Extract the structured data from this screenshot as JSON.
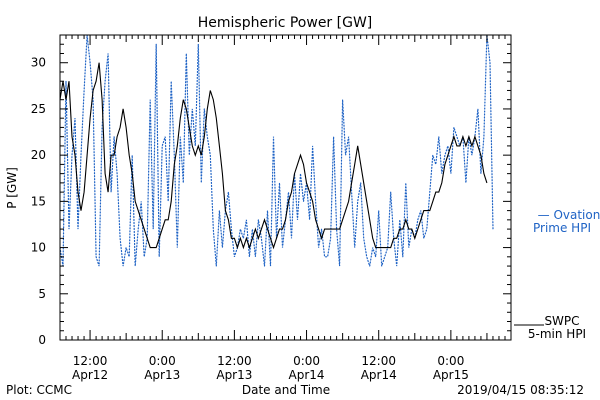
{
  "chart_data": {
    "type": "line",
    "title": "Hemispheric Power [GW]",
    "ylabel": "P [GW]",
    "xlabel": "Date and Time",
    "ylim": [
      0,
      33
    ],
    "yticks": [
      0,
      5,
      10,
      15,
      20,
      25,
      30
    ],
    "x_units": "hours since 2019/04/12 00:00",
    "xlim": [
      7,
      82
    ],
    "xticks": [
      {
        "x": 12,
        "line1": "12:00",
        "line2": "Apr12"
      },
      {
        "x": 24,
        "line1": "0:00",
        "line2": "Apr13"
      },
      {
        "x": 36,
        "line1": "12:00",
        "line2": "Apr13"
      },
      {
        "x": 48,
        "line1": "0:00",
        "line2": "Apr14"
      },
      {
        "x": 60,
        "line1": "12:00",
        "line2": "Apr14"
      },
      {
        "x": 72,
        "line1": "0:00",
        "line2": "Apr15"
      }
    ],
    "grid": false,
    "colors": {
      "swpc": "#000000",
      "ovation": "#1f63c5"
    },
    "series": [
      {
        "name": "SWPC 5-min HPI",
        "style": "solid",
        "points": [
          [
            7,
            26
          ],
          [
            7.5,
            28
          ],
          [
            8,
            26
          ],
          [
            8.5,
            28
          ],
          [
            9,
            22
          ],
          [
            9.5,
            20
          ],
          [
            10,
            16
          ],
          [
            10.5,
            14
          ],
          [
            11,
            16
          ],
          [
            11.5,
            20
          ],
          [
            12,
            24
          ],
          [
            12.5,
            27
          ],
          [
            13,
            28
          ],
          [
            13.5,
            30
          ],
          [
            14,
            26
          ],
          [
            14.5,
            18
          ],
          [
            15,
            16
          ],
          [
            15.5,
            20
          ],
          [
            16,
            20
          ],
          [
            16.5,
            22
          ],
          [
            17,
            23
          ],
          [
            17.5,
            25
          ],
          [
            18,
            23
          ],
          [
            18.5,
            20
          ],
          [
            19,
            18
          ],
          [
            19.5,
            15
          ],
          [
            20,
            14
          ],
          [
            20.5,
            13
          ],
          [
            21,
            12
          ],
          [
            21.5,
            11
          ],
          [
            22,
            10
          ],
          [
            22.5,
            10
          ],
          [
            23,
            10
          ],
          [
            23.5,
            11
          ],
          [
            24,
            12
          ],
          [
            24.5,
            13
          ],
          [
            25,
            13
          ],
          [
            25.5,
            15
          ],
          [
            26,
            19
          ],
          [
            26.5,
            21
          ],
          [
            27,
            24
          ],
          [
            27.5,
            26
          ],
          [
            28,
            25
          ],
          [
            28.5,
            23
          ],
          [
            29,
            21
          ],
          [
            29.5,
            20
          ],
          [
            30,
            21
          ],
          [
            30.5,
            20
          ],
          [
            31,
            22
          ],
          [
            31.5,
            25
          ],
          [
            32,
            27
          ],
          [
            32.5,
            26
          ],
          [
            33,
            24
          ],
          [
            33.5,
            21
          ],
          [
            34,
            18
          ],
          [
            34.5,
            14
          ],
          [
            35,
            13
          ],
          [
            35.5,
            11
          ],
          [
            36,
            11
          ],
          [
            36.5,
            10
          ],
          [
            37,
            11
          ],
          [
            37.5,
            10
          ],
          [
            38,
            11
          ],
          [
            38.5,
            10
          ],
          [
            39,
            11
          ],
          [
            39.5,
            12
          ],
          [
            40,
            11
          ],
          [
            40.5,
            12
          ],
          [
            41,
            13
          ],
          [
            41.5,
            12
          ],
          [
            42,
            11
          ],
          [
            42.5,
            10
          ],
          [
            43,
            11
          ],
          [
            43.5,
            12
          ],
          [
            44,
            12
          ],
          [
            44.5,
            13
          ],
          [
            45,
            15
          ],
          [
            45.5,
            16
          ],
          [
            46,
            18
          ],
          [
            46.5,
            19
          ],
          [
            47,
            20
          ],
          [
            47.5,
            19
          ],
          [
            48,
            17
          ],
          [
            48.5,
            16
          ],
          [
            49,
            15
          ],
          [
            49.5,
            13
          ],
          [
            50,
            12
          ],
          [
            50.5,
            11
          ],
          [
            51,
            12
          ],
          [
            51.5,
            12
          ],
          [
            52,
            12
          ],
          [
            52.5,
            12
          ],
          [
            53,
            12
          ],
          [
            53.5,
            12
          ],
          [
            54,
            13
          ],
          [
            54.5,
            14
          ],
          [
            55,
            15
          ],
          [
            55.5,
            17
          ],
          [
            56,
            19
          ],
          [
            56.5,
            21
          ],
          [
            57,
            19
          ],
          [
            57.5,
            17
          ],
          [
            58,
            15
          ],
          [
            58.5,
            13
          ],
          [
            59,
            11
          ],
          [
            59.5,
            10
          ],
          [
            60,
            10
          ],
          [
            60.5,
            10
          ],
          [
            61,
            10
          ],
          [
            61.5,
            10
          ],
          [
            62,
            10
          ],
          [
            62.5,
            11
          ],
          [
            63,
            11
          ],
          [
            63.5,
            12
          ],
          [
            64,
            12
          ],
          [
            64.5,
            13
          ],
          [
            65,
            12
          ],
          [
            65.5,
            12
          ],
          [
            66,
            11
          ],
          [
            66.5,
            12
          ],
          [
            67,
            13
          ],
          [
            67.5,
            14
          ],
          [
            68,
            14
          ],
          [
            68.5,
            14
          ],
          [
            69,
            15
          ],
          [
            69.5,
            16
          ],
          [
            70,
            16
          ],
          [
            70.5,
            17
          ],
          [
            71,
            19
          ],
          [
            71.5,
            20
          ],
          [
            72,
            21
          ],
          [
            72.5,
            22
          ],
          [
            73,
            21
          ],
          [
            73.5,
            21
          ],
          [
            74,
            22
          ],
          [
            74.5,
            21
          ],
          [
            75,
            22
          ],
          [
            75.5,
            21
          ],
          [
            76,
            22
          ],
          [
            76.5,
            21
          ],
          [
            77,
            20
          ],
          [
            77.5,
            18
          ],
          [
            78,
            17
          ]
        ]
      },
      {
        "name": "Ovation Prime HPI",
        "style": "dotted",
        "points": [
          [
            7,
            10
          ],
          [
            7.5,
            8
          ],
          [
            8,
            28
          ],
          [
            8.5,
            12
          ],
          [
            9,
            20
          ],
          [
            9.5,
            24
          ],
          [
            10,
            12
          ],
          [
            10.5,
            20
          ],
          [
            11,
            27
          ],
          [
            11.5,
            33
          ],
          [
            12,
            30
          ],
          [
            12.5,
            26
          ],
          [
            13,
            9
          ],
          [
            13.5,
            8
          ],
          [
            14,
            23
          ],
          [
            14.5,
            28
          ],
          [
            15,
            31
          ],
          [
            15.5,
            16
          ],
          [
            16,
            22
          ],
          [
            16.5,
            18
          ],
          [
            17,
            11
          ],
          [
            17.5,
            8
          ],
          [
            18,
            10
          ],
          [
            18.5,
            9
          ],
          [
            19,
            20
          ],
          [
            19.5,
            8
          ],
          [
            20,
            12
          ],
          [
            20.5,
            15
          ],
          [
            21,
            9
          ],
          [
            21.5,
            11
          ],
          [
            22,
            26
          ],
          [
            22.5,
            12
          ],
          [
            23,
            32
          ],
          [
            23.5,
            9
          ],
          [
            24,
            21
          ],
          [
            24.5,
            22
          ],
          [
            25,
            15
          ],
          [
            25.5,
            28
          ],
          [
            26,
            20
          ],
          [
            26.5,
            10
          ],
          [
            27,
            22
          ],
          [
            27.5,
            17
          ],
          [
            28,
            31
          ],
          [
            28.5,
            20
          ],
          [
            29,
            25
          ],
          [
            29.5,
            21
          ],
          [
            30,
            32
          ],
          [
            30.5,
            17
          ],
          [
            31,
            25
          ],
          [
            31.5,
            22
          ],
          [
            32,
            20
          ],
          [
            32.5,
            12
          ],
          [
            33,
            8
          ],
          [
            33.5,
            14
          ],
          [
            34,
            10
          ],
          [
            34.5,
            14
          ],
          [
            35,
            16
          ],
          [
            35.5,
            12
          ],
          [
            36,
            9
          ],
          [
            36.5,
            10
          ],
          [
            37,
            12
          ],
          [
            37.5,
            11
          ],
          [
            38,
            13
          ],
          [
            38.5,
            9
          ],
          [
            39,
            12
          ],
          [
            39.5,
            9
          ],
          [
            40,
            13
          ],
          [
            40.5,
            11
          ],
          [
            41,
            8
          ],
          [
            41.5,
            14
          ],
          [
            42,
            8
          ],
          [
            42.5,
            22
          ],
          [
            43,
            11
          ],
          [
            43.5,
            17
          ],
          [
            44,
            10
          ],
          [
            44.5,
            13
          ],
          [
            45,
            16
          ],
          [
            45.5,
            11
          ],
          [
            46,
            18
          ],
          [
            46.5,
            13
          ],
          [
            47,
            18
          ],
          [
            47.5,
            15
          ],
          [
            48,
            17
          ],
          [
            48.5,
            13
          ],
          [
            49,
            21
          ],
          [
            49.5,
            15
          ],
          [
            50,
            10
          ],
          [
            50.5,
            12
          ],
          [
            51,
            9
          ],
          [
            51.5,
            9
          ],
          [
            52,
            11
          ],
          [
            52.5,
            22
          ],
          [
            53,
            12
          ],
          [
            53.5,
            8
          ],
          [
            54,
            26
          ],
          [
            54.5,
            20
          ],
          [
            55,
            22
          ],
          [
            55.5,
            16
          ],
          [
            56,
            10
          ],
          [
            56.5,
            15
          ],
          [
            57,
            17
          ],
          [
            57.5,
            11
          ],
          [
            58,
            9
          ],
          [
            58.5,
            8
          ],
          [
            59,
            10
          ],
          [
            59.5,
            9
          ],
          [
            60,
            14
          ],
          [
            60.5,
            8
          ],
          [
            61,
            9
          ],
          [
            61.5,
            10
          ],
          [
            62,
            16
          ],
          [
            62.5,
            11
          ],
          [
            63,
            8
          ],
          [
            63.5,
            13
          ],
          [
            64,
            9
          ],
          [
            64.5,
            17
          ],
          [
            65,
            10
          ],
          [
            65.5,
            12
          ],
          [
            66,
            11
          ],
          [
            66.5,
            13
          ],
          [
            67,
            14
          ],
          [
            67.5,
            11
          ],
          [
            68,
            12
          ],
          [
            68.5,
            16
          ],
          [
            69,
            20
          ],
          [
            69.5,
            19
          ],
          [
            70,
            22
          ],
          [
            70.5,
            18
          ],
          [
            71,
            20
          ],
          [
            71.5,
            21
          ],
          [
            72,
            18
          ],
          [
            72.5,
            23
          ],
          [
            73,
            22
          ],
          [
            73.5,
            21
          ],
          [
            74,
            22
          ],
          [
            74.5,
            17
          ],
          [
            75,
            22
          ],
          [
            75.5,
            20
          ],
          [
            76,
            22
          ],
          [
            76.5,
            25
          ],
          [
            77,
            18
          ],
          [
            77.5,
            22
          ],
          [
            78,
            33
          ],
          [
            78.5,
            30
          ],
          [
            79,
            12
          ]
        ]
      }
    ],
    "legend": {
      "placement": "right",
      "ovation_line1": "— Ovation",
      "ovation_line2": "Prime HPI",
      "swpc_line1": "SWPC",
      "swpc_line2": "5-min HPI"
    }
  },
  "footer": {
    "left": "Plot: CCMC",
    "center": "Date and Time",
    "right": "2019/04/15 08:35:12"
  }
}
